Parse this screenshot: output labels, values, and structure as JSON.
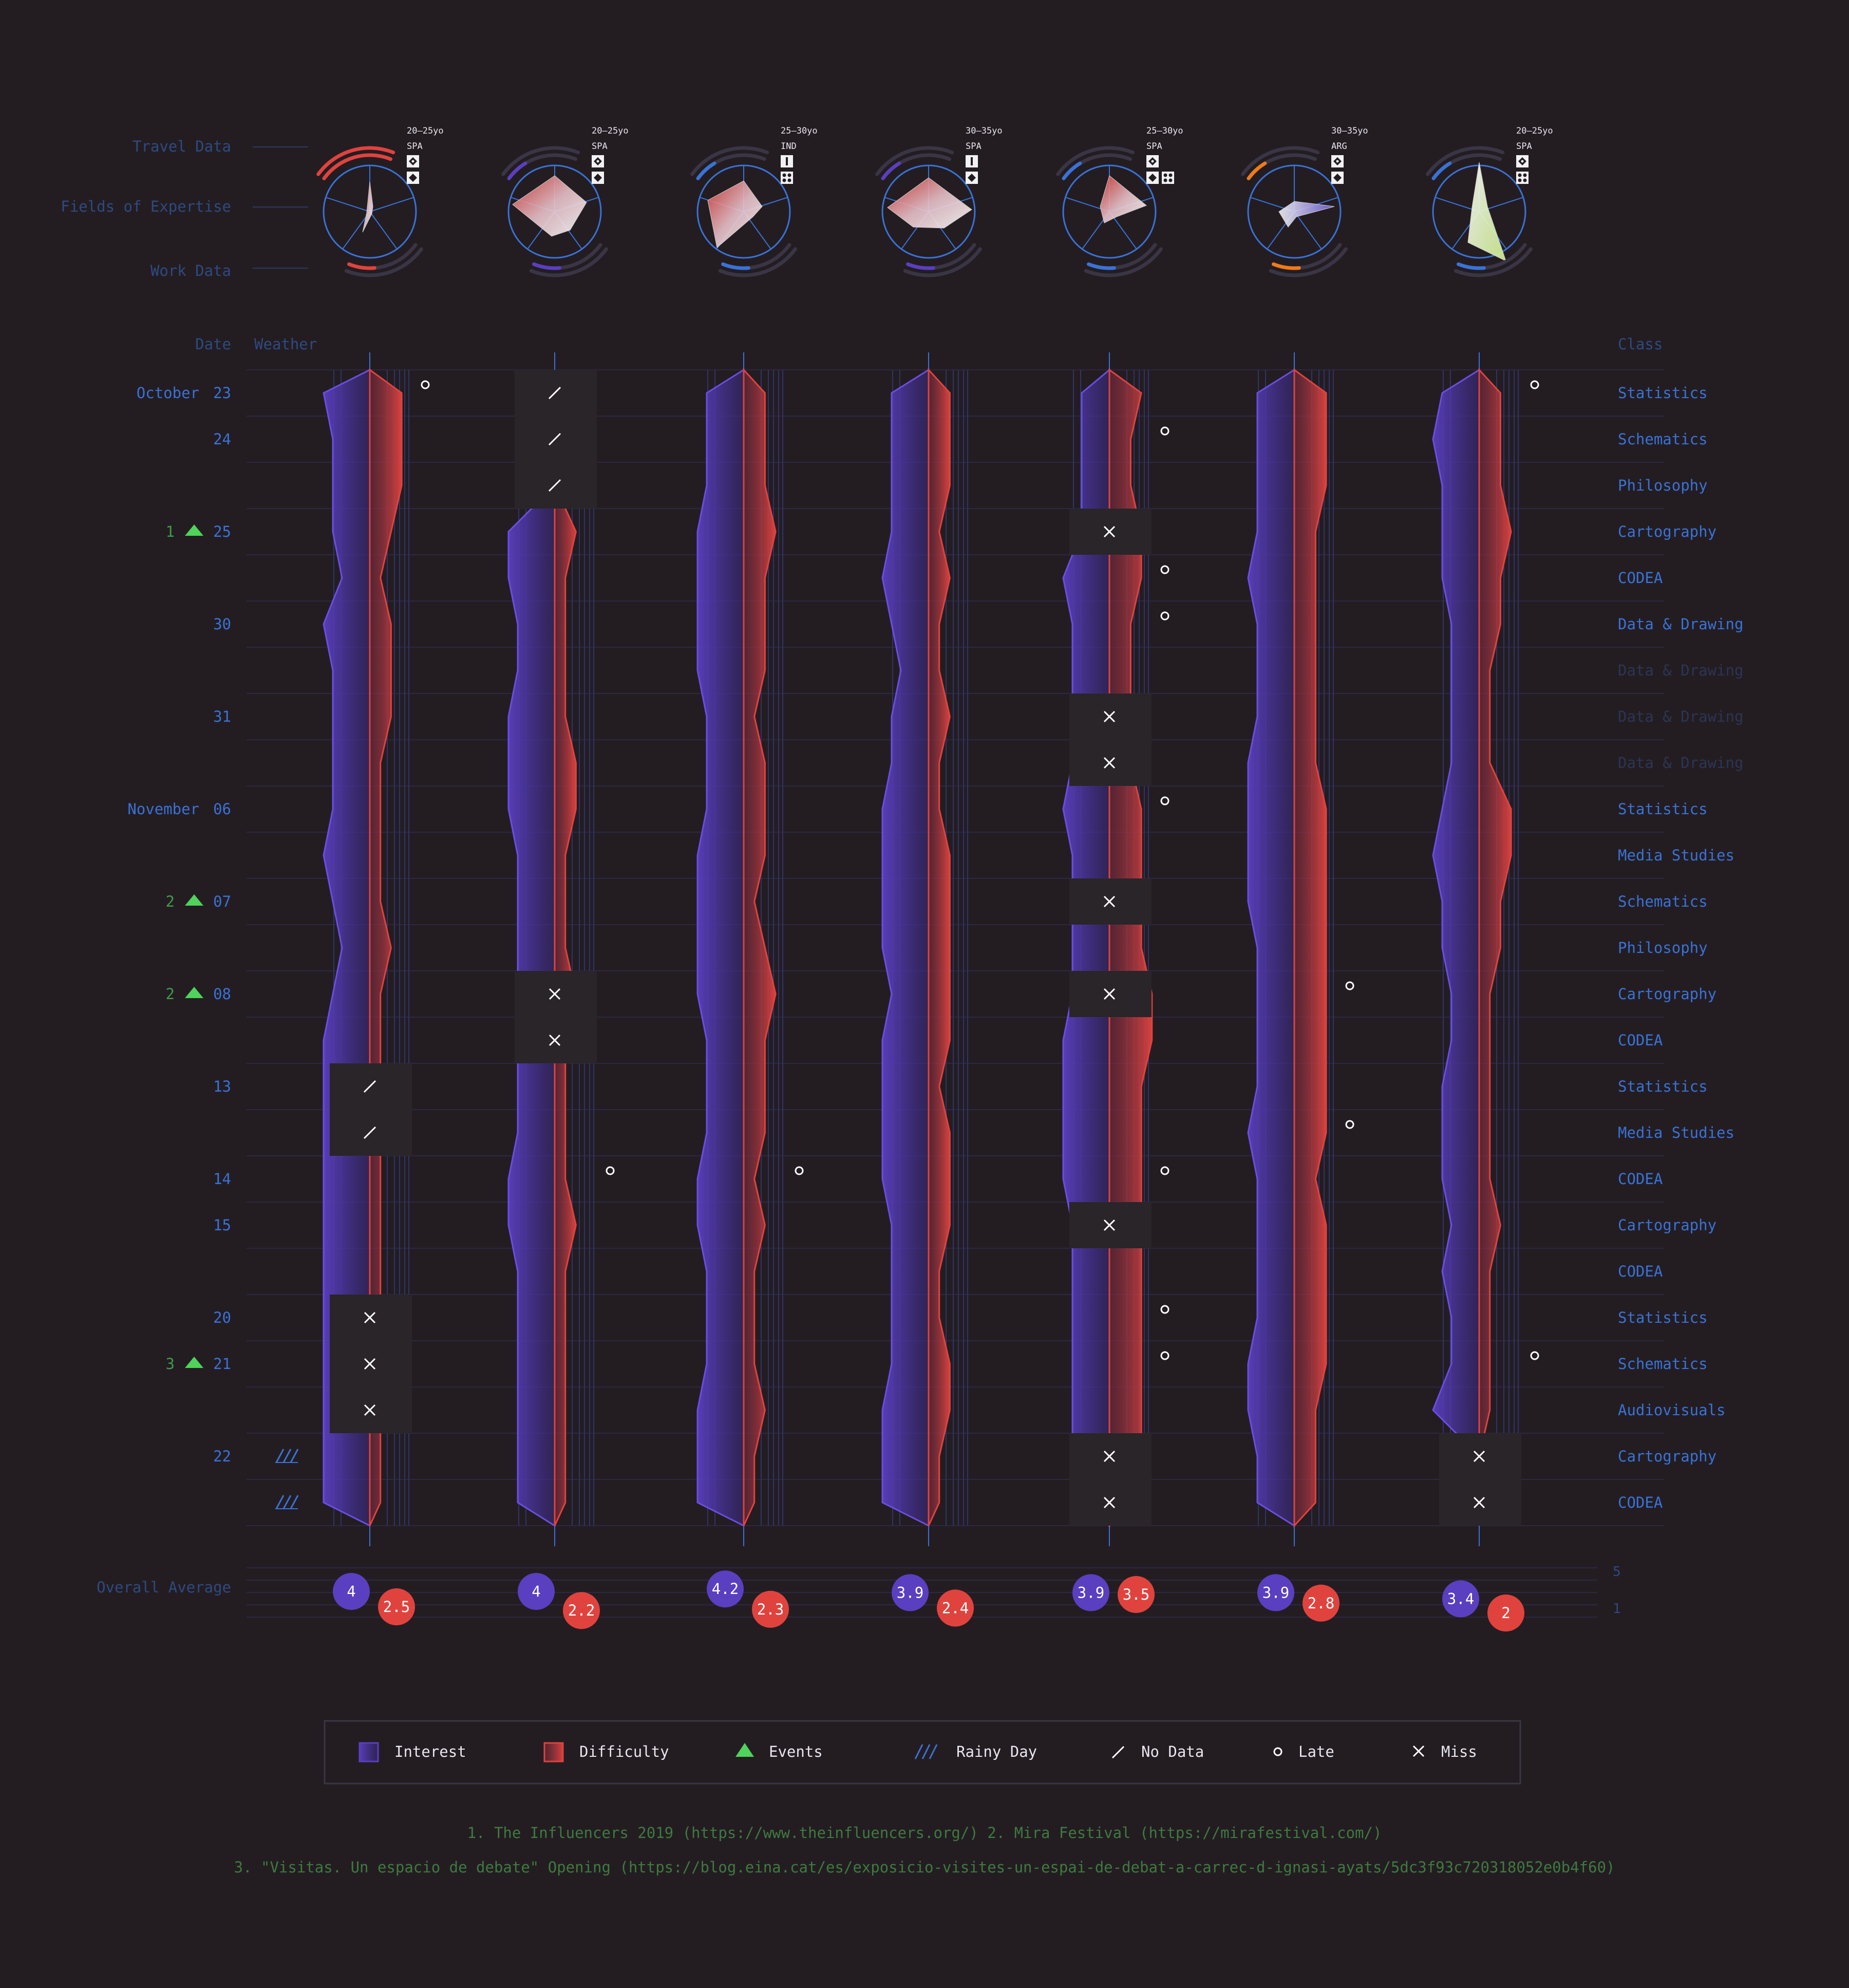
{
  "labels": {
    "travel": "Travel Data",
    "fields": "Fields of Expertise",
    "work": "Work Data",
    "date": "Date",
    "weather": "Weather",
    "class": "Class",
    "overall": "Overall Average",
    "scale_max": "5",
    "scale_min": "1"
  },
  "colors": {
    "background": "#231d22",
    "interest": "#5a3fc0",
    "difficulty": "#e0433e",
    "label_blue": "#3a72d6",
    "label_dim": "#2e4a80",
    "event_green": "#4fd35a",
    "grid": "#2f2a45"
  },
  "students": [
    {
      "age": "20–25yo",
      "country": "SPA",
      "ring": "#e0433e",
      "profile_icons": [
        "diamond-dot-icon",
        "diamond-icon"
      ]
    },
    {
      "age": "20–25yo",
      "country": "SPA",
      "ring": "#5a3fc0",
      "profile_icons": [
        "diamond-dot-icon",
        "diamond-icon"
      ]
    },
    {
      "age": "25–30yo",
      "country": "IND",
      "ring": "#3a72d6",
      "profile_icons": [
        "bar-icon",
        "dots-icon"
      ]
    },
    {
      "age": "30–35yo",
      "country": "SPA",
      "ring": "#5a3fc0",
      "profile_icons": [
        "bar-icon",
        "diamond-icon"
      ]
    },
    {
      "age": "25–30yo",
      "country": "SPA",
      "ring": "#3a72d6",
      "profile_icons": [
        "diamond-dot-icon",
        "diamond-icon",
        "dots-icon"
      ]
    },
    {
      "age": "30–35yo",
      "country": "ARG",
      "ring": "#f07a1a",
      "profile_icons": [
        "diamond-dot-icon",
        "diamond-icon"
      ]
    },
    {
      "age": "20–25yo",
      "country": "SPA",
      "ring": "#3a72d6",
      "profile_icons": [
        "diamond-dot-icon",
        "dots-icon"
      ]
    }
  ],
  "rows": [
    {
      "month": "October",
      "day": "23",
      "class": "Statistics",
      "event": "",
      "rain": false,
      "dim": false
    },
    {
      "month": "",
      "day": "24",
      "class": "Schematics",
      "event": "",
      "rain": false,
      "dim": false
    },
    {
      "month": "",
      "day": "",
      "class": "Philosophy",
      "event": "",
      "rain": false,
      "dim": false
    },
    {
      "month": "",
      "day": "25",
      "class": "Cartography",
      "event": "1",
      "rain": false,
      "dim": false
    },
    {
      "month": "",
      "day": "",
      "class": "CODEA",
      "event": "",
      "rain": false,
      "dim": false
    },
    {
      "month": "",
      "day": "30",
      "class": "Data & Drawing",
      "event": "",
      "rain": false,
      "dim": false
    },
    {
      "month": "",
      "day": "",
      "class": "Data & Drawing",
      "event": "",
      "rain": false,
      "dim": true
    },
    {
      "month": "",
      "day": "31",
      "class": "Data & Drawing",
      "event": "",
      "rain": false,
      "dim": true
    },
    {
      "month": "",
      "day": "",
      "class": "Data & Drawing",
      "event": "",
      "rain": false,
      "dim": true
    },
    {
      "month": "November",
      "day": "06",
      "class": "Statistics",
      "event": "",
      "rain": false,
      "dim": false
    },
    {
      "month": "",
      "day": "",
      "class": "Media Studies",
      "event": "",
      "rain": false,
      "dim": false
    },
    {
      "month": "",
      "day": "07",
      "class": "Schematics",
      "event": "2",
      "rain": false,
      "dim": false
    },
    {
      "month": "",
      "day": "",
      "class": "Philosophy",
      "event": "",
      "rain": false,
      "dim": false
    },
    {
      "month": "",
      "day": "08",
      "class": "Cartography",
      "event": "2",
      "rain": false,
      "dim": false
    },
    {
      "month": "",
      "day": "",
      "class": "CODEA",
      "event": "",
      "rain": false,
      "dim": false
    },
    {
      "month": "",
      "day": "13",
      "class": "Statistics",
      "event": "",
      "rain": false,
      "dim": false
    },
    {
      "month": "",
      "day": "",
      "class": "Media Studies",
      "event": "",
      "rain": false,
      "dim": false
    },
    {
      "month": "",
      "day": "14",
      "class": "CODEA",
      "event": "",
      "rain": false,
      "dim": false
    },
    {
      "month": "",
      "day": "15",
      "class": "Cartography",
      "event": "",
      "rain": false,
      "dim": false
    },
    {
      "month": "",
      "day": "",
      "class": "CODEA",
      "event": "",
      "rain": false,
      "dim": false
    },
    {
      "month": "",
      "day": "20",
      "class": "Statistics",
      "event": "",
      "rain": false,
      "dim": false
    },
    {
      "month": "",
      "day": "21",
      "class": "Schematics",
      "event": "3",
      "rain": false,
      "dim": false
    },
    {
      "month": "",
      "day": "",
      "class": "Audiovisuals",
      "event": "",
      "rain": false,
      "dim": false
    },
    {
      "month": "",
      "day": "22",
      "class": "Cartography",
      "event": "",
      "rain": true,
      "dim": false
    },
    {
      "month": "",
      "day": "",
      "class": "CODEA",
      "event": "",
      "rain": true,
      "dim": false
    }
  ],
  "chart_data": {
    "type": "area",
    "scale": [
      1,
      5
    ],
    "series_names": [
      "Interest",
      "Difficulty"
    ],
    "averages": [
      {
        "interest": 4.0,
        "difficulty": 2.5
      },
      {
        "interest": 4.0,
        "difficulty": 2.2
      },
      {
        "interest": 4.2,
        "difficulty": 2.3
      },
      {
        "interest": 3.9,
        "difficulty": 2.4
      },
      {
        "interest": 3.9,
        "difficulty": 3.5
      },
      {
        "interest": 3.9,
        "difficulty": 2.8
      },
      {
        "interest": 3.4,
        "difficulty": 2.0
      }
    ],
    "interest": [
      [
        5,
        4,
        4,
        4,
        3,
        5,
        4,
        4,
        4,
        4,
        5,
        4,
        3,
        4,
        5,
        5,
        5,
        5,
        5,
        5,
        5,
        5,
        5,
        5,
        5
      ],
      [
        0,
        0,
        0,
        5,
        5,
        4,
        4,
        5,
        5,
        5,
        4,
        4,
        4,
        4,
        4,
        4,
        4,
        5,
        5,
        4,
        4,
        4,
        4,
        4,
        4
      ],
      [
        4,
        4,
        4,
        5,
        5,
        5,
        5,
        4,
        4,
        4,
        5,
        5,
        5,
        5,
        4,
        4,
        4,
        5,
        5,
        4,
        4,
        4,
        5,
        5,
        5
      ],
      [
        4,
        4,
        4,
        4,
        5,
        4,
        3,
        4,
        4,
        5,
        5,
        5,
        5,
        4,
        5,
        5,
        5,
        5,
        4,
        4,
        4,
        4,
        5,
        5,
        5
      ],
      [
        3,
        3,
        3,
        3,
        5,
        4,
        4,
        4,
        4,
        5,
        4,
        4,
        4,
        4,
        5,
        5,
        5,
        5,
        4,
        4,
        4,
        4,
        4,
        4,
        4
      ],
      [
        4,
        4,
        4,
        4,
        5,
        4,
        4,
        4,
        5,
        5,
        5,
        5,
        4,
        4,
        4,
        4,
        5,
        4,
        4,
        4,
        4,
        5,
        5,
        4,
        4
      ],
      [
        4,
        5,
        4,
        4,
        4,
        3,
        3,
        3,
        3,
        4,
        5,
        4,
        4,
        3,
        3,
        4,
        4,
        4,
        3,
        4,
        3,
        3,
        5,
        0,
        0
      ]
    ],
    "difficulty": [
      [
        3,
        3,
        3,
        2,
        1,
        2,
        2,
        2,
        1,
        1,
        1,
        1,
        2,
        1,
        1,
        1,
        1,
        1,
        1,
        1,
        1,
        1,
        1,
        1,
        1
      ],
      [
        0,
        0,
        0,
        2,
        1,
        1,
        1,
        1,
        2,
        2,
        1,
        1,
        1,
        2,
        1,
        1,
        1,
        1,
        2,
        1,
        1,
        1,
        1,
        1,
        1
      ],
      [
        2,
        2,
        2,
        3,
        2,
        2,
        2,
        1,
        2,
        2,
        2,
        1,
        2,
        3,
        2,
        2,
        2,
        1,
        2,
        1,
        1,
        1,
        2,
        1,
        1
      ],
      [
        2,
        2,
        2,
        1,
        2,
        1,
        1,
        2,
        1,
        1,
        2,
        2,
        2,
        2,
        2,
        1,
        2,
        2,
        2,
        1,
        1,
        2,
        2,
        1,
        1
      ],
      [
        3,
        2,
        2,
        3,
        3,
        2,
        2,
        2,
        2,
        3,
        3,
        3,
        3,
        4,
        4,
        3,
        3,
        3,
        3,
        3,
        3,
        3,
        3,
        3,
        3
      ],
      [
        3,
        3,
        3,
        2,
        2,
        2,
        2,
        2,
        2,
        3,
        3,
        3,
        3,
        3,
        3,
        3,
        3,
        2,
        3,
        3,
        3,
        3,
        2,
        2,
        2
      ],
      [
        2,
        2,
        2,
        3,
        2,
        2,
        1,
        1,
        1,
        3,
        3,
        2,
        2,
        1,
        1,
        1,
        1,
        1,
        2,
        1,
        1,
        1,
        1,
        0,
        0
      ]
    ],
    "no_data": [
      [
        15,
        16
      ],
      [
        0,
        1,
        2
      ],
      [],
      [],
      [],
      [],
      []
    ],
    "miss": [
      [
        20,
        21,
        22
      ],
      [
        13,
        14
      ],
      [],
      [],
      [
        3,
        7,
        8,
        11,
        13,
        18,
        23,
        24
      ],
      [],
      [
        23,
        24
      ]
    ],
    "late": [
      [
        0
      ],
      [
        17
      ],
      [
        17
      ],
      [],
      [
        1,
        4,
        5,
        9,
        17,
        20,
        21
      ],
      [
        13,
        16
      ],
      [
        0,
        21
      ]
    ]
  },
  "legend": {
    "interest": "Interest",
    "difficulty": "Difficulty",
    "events": "Events",
    "rainy": "Rainy Day",
    "nodata": "No Data",
    "late": "Late",
    "miss": "Miss"
  },
  "footnotes": {
    "line1": "1. The Influencers 2019 (https://www.theinfluencers.org/)  2. Mira Festival (https://mirafestival.com/)",
    "line2": "3. \"Visitas. Un espacio de debate\" Opening (https://blog.eina.cat/es/exposicio-visites-un-espai-de-debat-a-carrec-d-ignasi-ayats/5dc3f93c720318052e0b4f60)"
  }
}
